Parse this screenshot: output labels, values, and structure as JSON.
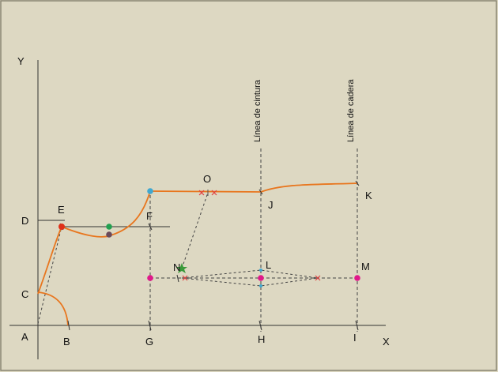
{
  "colors": {
    "background": "#ddd8c2",
    "frame": "#8a8572",
    "axis": "#333333",
    "curve": "#e8761e",
    "dashed": "#444444",
    "red_point": "#e03018",
    "green_point": "#22a050",
    "brown_point": "#6a4a5a",
    "blue_point": "#40a8d0",
    "pink_point": "#e0188a",
    "star": "#3a9a3a",
    "cross": "#e04040"
  },
  "axes": {
    "y": "Y",
    "x": "X"
  },
  "points": {
    "A": "A",
    "B": "B",
    "C": "C",
    "D": "D",
    "E": "E",
    "F": "F",
    "G": "G",
    "H": "H",
    "I": "I",
    "J": "J",
    "K": "K",
    "L": "L",
    "M": "M",
    "N": "N",
    "O": "O"
  },
  "guide_lines": {
    "waist": "Línea de cintura",
    "hip": "Línea de cadera"
  }
}
